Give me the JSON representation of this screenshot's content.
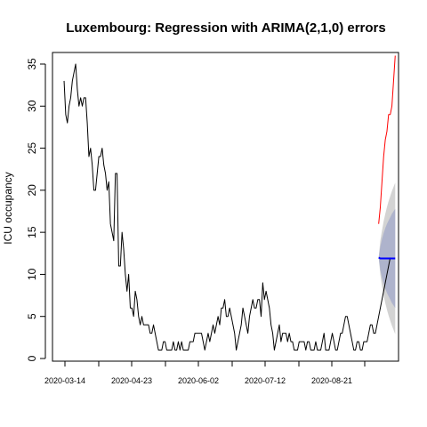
{
  "chart_data": {
    "type": "line",
    "title": "Luxembourg: Regression with ARIMA(2,1,0) errors",
    "xlabel": "",
    "ylabel": "ICU occupancy",
    "x_tick_labels": [
      "2020-03-14",
      "2020-04-23",
      "2020-06-02",
      "2020-07-12",
      "2020-08-21"
    ],
    "y_ticks": [
      0,
      5,
      10,
      15,
      20,
      25,
      30,
      35
    ],
    "xlim": [
      "2020-03-07",
      "2020-10-02"
    ],
    "ylim": [
      0,
      36
    ],
    "grid": false,
    "series": [
      {
        "role": "observed",
        "color": "#000000",
        "x_start": "2020-03-14",
        "values": [
          33,
          29,
          28,
          30,
          31,
          33,
          34,
          35,
          32,
          30,
          31,
          30,
          31,
          31,
          28,
          24,
          25,
          23,
          20,
          20,
          22,
          24,
          24,
          25,
          23,
          22,
          20,
          21,
          16,
          15,
          14,
          22,
          22,
          11,
          11,
          15,
          13,
          10,
          8,
          10,
          6,
          6,
          5,
          8,
          7,
          5,
          4,
          5,
          4,
          4,
          4,
          4,
          3,
          3,
          4,
          3,
          2,
          1,
          1,
          1,
          2,
          2,
          1,
          1,
          1,
          1,
          2,
          1,
          1,
          2,
          1,
          2,
          1,
          1,
          1,
          1,
          2,
          2,
          2,
          3,
          3,
          3,
          3,
          3,
          2,
          1,
          2,
          3,
          2,
          3,
          4,
          3,
          4,
          5,
          4,
          6,
          6,
          7,
          5,
          5,
          6,
          5,
          4,
          3,
          1,
          2,
          3,
          4,
          6,
          5,
          4,
          3,
          5,
          6,
          7,
          6,
          6,
          7,
          7,
          5,
          9,
          7,
          8,
          7,
          6,
          4,
          3,
          1,
          2,
          3,
          4,
          2,
          3,
          3,
          3,
          2,
          3,
          2,
          2,
          1,
          1,
          1,
          2,
          2,
          2,
          2,
          1,
          2,
          2,
          1,
          1,
          1,
          2,
          1,
          1,
          1,
          2,
          3,
          1,
          1,
          1,
          2,
          3,
          2,
          1,
          1,
          2,
          3,
          3,
          4,
          5,
          5,
          4,
          3,
          2,
          1,
          1,
          2,
          2,
          1,
          1,
          2,
          2,
          2,
          3,
          4,
          4,
          3,
          3,
          4,
          5,
          6,
          7,
          8,
          9,
          10,
          11,
          12
        ]
      },
      {
        "role": "actual-after-forecast",
        "color": "#ff0000",
        "x_start": "2020-09-20",
        "values": [
          16,
          18,
          21,
          24,
          26,
          27,
          29,
          29,
          30,
          33,
          36
        ]
      },
      {
        "role": "point-forecast",
        "color": "#0000ff",
        "x_start": "2020-09-20",
        "values": [
          12,
          11.9,
          11.9,
          11.9,
          11.9,
          11.9,
          11.9,
          11.9,
          11.9,
          11.9,
          11.9
        ]
      }
    ],
    "intervals": [
      {
        "level": "95",
        "color": "#d3d3d3",
        "x_start": "2020-09-20",
        "lower": [
          12,
          10.0,
          8.6,
          7.5,
          6.6,
          5.8,
          5.1,
          4.5,
          3.9,
          3.4,
          2.9
        ],
        "upper": [
          12,
          14.0,
          15.2,
          16.3,
          17.2,
          18.0,
          18.7,
          19.3,
          19.9,
          20.4,
          20.9
        ]
      },
      {
        "level": "80",
        "color": "#aeb3cc",
        "x_start": "2020-09-20",
        "lower": [
          12,
          10.5,
          9.6,
          8.9,
          8.3,
          7.8,
          7.4,
          7.0,
          6.6,
          6.3,
          6.0
        ],
        "upper": [
          12,
          13.3,
          14.2,
          14.9,
          15.5,
          16.0,
          16.4,
          16.8,
          17.2,
          17.5,
          17.8
        ]
      }
    ]
  }
}
